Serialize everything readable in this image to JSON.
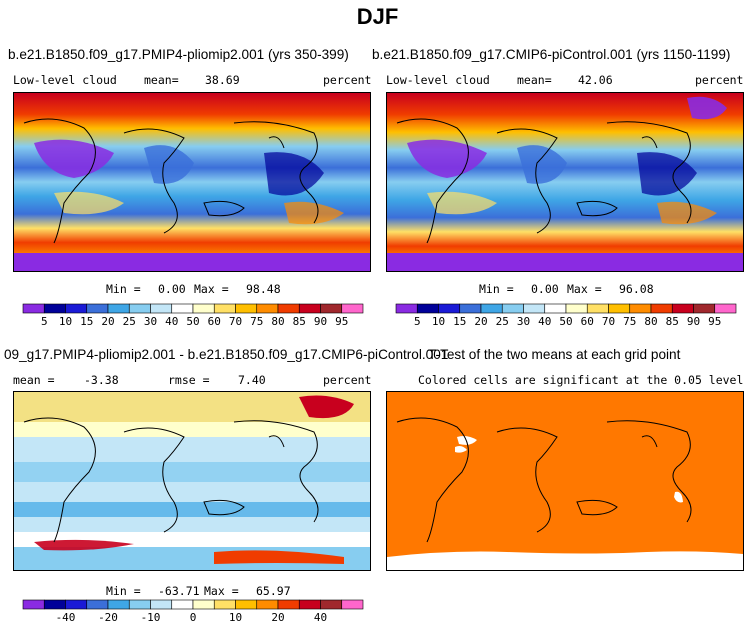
{
  "title": "DJF",
  "panels": [
    {
      "title": "b.e21.B1850.f09_g17.PMIP4-pliomip2.001 (yrs 350-399)",
      "left_label": "Low-level cloud",
      "mean_label": "mean=",
      "mean_value": "38.69",
      "units": "percent",
      "min_label": "Min =",
      "min_value": "0.00",
      "max_label": "Max =",
      "max_value": "98.48"
    },
    {
      "title": "b.e21.B1850.f09_g17.CMIP6-piControl.001 (yrs 1150-1199)",
      "left_label": "Low-level cloud",
      "mean_label": "mean=",
      "mean_value": "42.06",
      "units": "percent",
      "min_label": "Min =",
      "min_value": "0.00",
      "max_label": "Max =",
      "max_value": "96.08"
    },
    {
      "title": "09_g17.PMIP4-pliomip2.001 - b.e21.B1850.f09_g17.CMIP6-piControl.001",
      "mean_label": "mean =",
      "mean_value": "-3.38",
      "rmse_label": "rmse =",
      "rmse_value": "7.40",
      "units": "percent",
      "min_label": "Min =",
      "min_value": "-63.71",
      "max_label": "Max =",
      "max_value": "65.97"
    },
    {
      "title": "T-Test of the two means at each grid point",
      "subtitle": "Colored cells are significant at the 0.05 level"
    }
  ],
  "colorbar_abs": {
    "labels": [
      "5",
      "10",
      "15",
      "20",
      "25",
      "30",
      "40",
      "50",
      "60",
      "70",
      "75",
      "80",
      "85",
      "90",
      "95"
    ],
    "colors": [
      "#8a2be2",
      "#000099",
      "#1a1ad6",
      "#3b6fd9",
      "#3fa6e6",
      "#87cdf0",
      "#c3e6f7",
      "#ffffff",
      "#ffffcc",
      "#ffe066",
      "#ffbf00",
      "#ff8c00",
      "#f03c00",
      "#c8001e",
      "#a0282d",
      "#ff66cc"
    ]
  },
  "colorbar_diff": {
    "labels": [
      "-40",
      "-20",
      "-10",
      "0",
      "10",
      "20",
      "40"
    ],
    "colors": [
      "#8a2be2",
      "#000099",
      "#1a1ad6",
      "#3b6fd9",
      "#3fa6e6",
      "#87cdf0",
      "#c3e6f7",
      "#ffffff",
      "#ffffcc",
      "#ffe066",
      "#ffbf00",
      "#ff8c00",
      "#f03c00",
      "#c8001e",
      "#a0282d",
      "#ff66cc"
    ]
  },
  "ttest_color": "#ff7800"
}
